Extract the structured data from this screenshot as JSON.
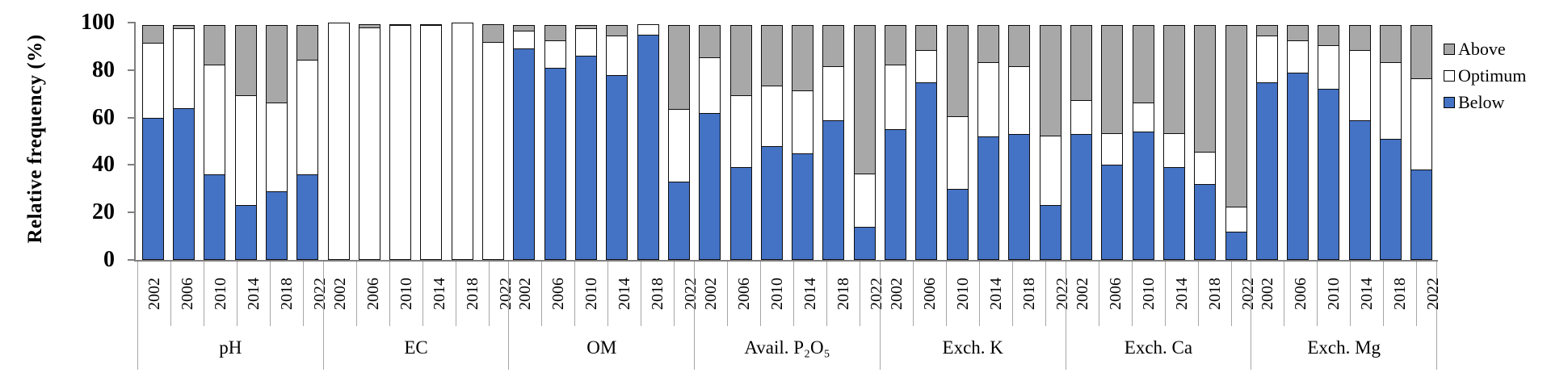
{
  "chart_data": {
    "type": "bar",
    "stacked": true,
    "orientation": "vertical",
    "ylabel": "Relative frequency (%)",
    "ylim": [
      0,
      100
    ],
    "yticks": [
      100,
      80,
      60,
      40,
      20,
      0
    ],
    "grid": false,
    "legend_position": "right",
    "legend": [
      {
        "key": "above",
        "label": "Above",
        "color": "#a8a8a8"
      },
      {
        "key": "optimum",
        "label": "Optimum",
        "color": "#ffffff"
      },
      {
        "key": "below",
        "label": "Below",
        "color": "#4472c4"
      }
    ],
    "colors": {
      "above": "#a8a8a8",
      "optimum": "#ffffff",
      "below": "#4472c4"
    },
    "years": [
      "2002",
      "2006",
      "2010",
      "2014",
      "2018",
      "2022"
    ],
    "groups": [
      {
        "label": "pH",
        "below": [
          60,
          64,
          36,
          23,
          29,
          36
        ],
        "optimum": [
          32,
          34,
          47,
          47,
          38,
          49
        ],
        "above": [
          8,
          2,
          17,
          30,
          33,
          15
        ]
      },
      {
        "label": "EC",
        "below": [
          0,
          0,
          0,
          0,
          0,
          0
        ],
        "optimum": [
          100,
          98,
          99,
          99,
          100,
          92
        ],
        "above": [
          0,
          2,
          1,
          1,
          0,
          8
        ]
      },
      {
        "label": "OM",
        "below": [
          89,
          81,
          86,
          78,
          95,
          33
        ],
        "optimum": [
          8,
          12,
          12,
          17,
          5,
          31
        ],
        "above": [
          3,
          7,
          2,
          5,
          0,
          36
        ]
      },
      {
        "label": "Avail. P₂O₅",
        "below": [
          62,
          39,
          48,
          45,
          59,
          14
        ],
        "optimum": [
          24,
          31,
          26,
          27,
          23,
          23
        ],
        "above": [
          14,
          30,
          26,
          28,
          18,
          63
        ]
      },
      {
        "label": "Exch. K",
        "below": [
          55,
          75,
          30,
          52,
          53,
          23
        ],
        "optimum": [
          28,
          14,
          31,
          32,
          29,
          30
        ],
        "above": [
          17,
          11,
          39,
          16,
          18,
          47
        ]
      },
      {
        "label": "Exch. Ca",
        "below": [
          53,
          40,
          54,
          39,
          32,
          12
        ],
        "optimum": [
          15,
          14,
          13,
          15,
          14,
          11
        ],
        "above": [
          32,
          46,
          33,
          46,
          54,
          77
        ]
      },
      {
        "label": "Exch. Mg",
        "below": [
          75,
          79,
          72,
          59,
          51,
          38
        ],
        "optimum": [
          20,
          14,
          19,
          30,
          33,
          39
        ],
        "above": [
          5,
          7,
          9,
          11,
          16,
          23
        ]
      }
    ]
  }
}
